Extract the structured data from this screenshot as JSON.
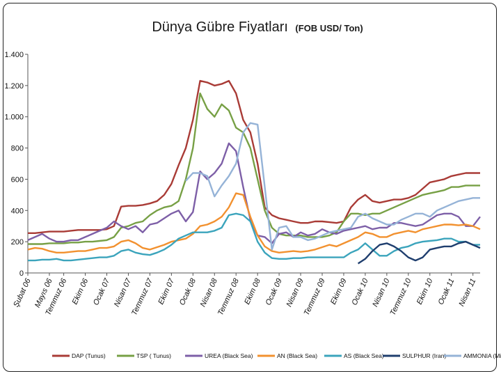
{
  "chart_data": {
    "type": "line",
    "title": "Dünya Gübre Fiyatları",
    "subtitle": "(FOB USD/ Ton)",
    "xlabel": "",
    "ylabel": "",
    "ylim": [
      0,
      1400
    ],
    "yticks": [
      0,
      200,
      400,
      600,
      800,
      "1.000",
      "1.200",
      "1.400"
    ],
    "ytick_labels": [
      "0",
      "200",
      "400",
      "600",
      "800",
      "1.000",
      "1.200",
      "1.400"
    ],
    "grid": false,
    "legend_position": "bottom",
    "x_start": "Şubat 06",
    "n_months": 64,
    "x_tick_labels": [
      "Şubat 06",
      "Mayıs 06",
      "Temmuz 06",
      "Ekim 06",
      "Ocak 07",
      "Nisan 07",
      "Temmuz 07",
      "Ekim 07",
      "Ocak 08",
      "Nisan 08",
      "Temmuz 08",
      "Ekim 08",
      "Ocak 09",
      "Nisan 09",
      "Temmuz 09",
      "Ekim 09",
      "Ocak 10",
      "Nisan 10",
      "Temmuz 10",
      "Ekim 10",
      "Ocak 11",
      "Nisan 11"
    ],
    "x_tick_months": [
      0,
      3,
      5,
      8,
      11,
      14,
      17,
      20,
      23,
      26,
      29,
      32,
      35,
      38,
      41,
      44,
      47,
      50,
      53,
      56,
      59,
      62
    ],
    "series": [
      {
        "name": "DAP (Tunus)",
        "color": "#A93B36",
        "start": 0,
        "values": [
          255,
          255,
          260,
          265,
          265,
          265,
          270,
          275,
          275,
          275,
          275,
          280,
          300,
          425,
          430,
          430,
          435,
          445,
          460,
          500,
          570,
          690,
          800,
          980,
          1230,
          1220,
          1200,
          1210,
          1230,
          1150,
          980,
          900,
          700,
          420,
          370,
          350,
          340,
          330,
          320,
          320,
          330,
          330,
          325,
          320,
          330,
          420,
          470,
          500,
          460,
          450,
          460,
          470,
          470,
          480,
          500,
          540,
          580,
          590,
          600,
          620,
          630,
          640,
          640,
          640
        ]
      },
      {
        "name": "TSP ( Tunus)",
        "color": "#77A045",
        "start": 0,
        "values": [
          185,
          185,
          185,
          190,
          190,
          190,
          195,
          195,
          200,
          200,
          205,
          210,
          230,
          290,
          300,
          320,
          330,
          370,
          400,
          420,
          430,
          460,
          600,
          800,
          1150,
          1050,
          1000,
          1080,
          1040,
          930,
          900,
          800,
          600,
          400,
          290,
          250,
          240,
          240,
          240,
          230,
          230,
          230,
          240,
          260,
          330,
          380,
          380,
          370,
          380,
          380,
          400,
          420,
          440,
          460,
          480,
          500,
          510,
          520,
          530,
          550,
          550,
          560,
          560,
          560
        ]
      },
      {
        "name": "UREA (Black Sea)",
        "color": "#7D5FA7",
        "start": 0,
        "values": [
          210,
          230,
          250,
          220,
          200,
          200,
          210,
          210,
          230,
          250,
          270,
          290,
          330,
          300,
          280,
          300,
          260,
          310,
          320,
          350,
          380,
          400,
          330,
          390,
          650,
          600,
          640,
          700,
          830,
          780,
          550,
          340,
          240,
          230,
          190,
          250,
          260,
          230,
          260,
          240,
          250,
          280,
          260,
          250,
          270,
          280,
          290,
          300,
          280,
          290,
          290,
          320,
          320,
          310,
          300,
          310,
          340,
          370,
          380,
          380,
          360,
          300,
          300,
          360
        ]
      },
      {
        "name": "AN (Black Sea)",
        "color": "#F2912F",
        "start": 0,
        "values": [
          150,
          160,
          155,
          140,
          130,
          130,
          135,
          140,
          140,
          150,
          160,
          160,
          170,
          200,
          210,
          190,
          160,
          150,
          165,
          180,
          200,
          210,
          220,
          250,
          300,
          310,
          330,
          360,
          420,
          510,
          500,
          360,
          240,
          170,
          140,
          130,
          135,
          140,
          135,
          140,
          150,
          165,
          180,
          170,
          190,
          210,
          230,
          260,
          250,
          230,
          230,
          250,
          260,
          270,
          260,
          280,
          290,
          300,
          310,
          310,
          305,
          310,
          300,
          280
        ]
      },
      {
        "name": "AS (Black Sea)",
        "color": "#3BA4BC",
        "start": 0,
        "values": [
          80,
          80,
          85,
          85,
          90,
          80,
          80,
          85,
          90,
          95,
          100,
          100,
          110,
          140,
          150,
          130,
          120,
          115,
          130,
          150,
          180,
          220,
          240,
          260,
          260,
          260,
          270,
          290,
          370,
          380,
          370,
          330,
          200,
          130,
          95,
          90,
          90,
          95,
          95,
          100,
          100,
          100,
          100,
          100,
          100,
          130,
          150,
          190,
          150,
          110,
          110,
          140,
          160,
          170,
          190,
          200,
          205,
          210,
          220,
          220,
          200,
          200,
          180,
          180
        ]
      },
      {
        "name": "SULPHUR (Iran)",
        "color": "#1F3E6E",
        "start": 46,
        "values": [
          60,
          90,
          140,
          180,
          190,
          170,
          140,
          100,
          80,
          100,
          150,
          160,
          170,
          170,
          190,
          200,
          180,
          160
        ]
      },
      {
        "name": "AMMONIA (Middle East)",
        "color": "#95B3D7",
        "start": 22,
        "values": [
          590,
          640,
          640,
          620,
          490,
          560,
          620,
          700,
          900,
          960,
          950,
          550,
          150,
          290,
          300,
          230,
          230,
          210,
          220,
          240,
          260,
          270,
          280,
          290,
          360,
          380,
          350,
          330,
          310,
          310,
          340,
          360,
          380,
          380,
          360,
          400,
          420,
          440,
          460,
          470,
          480,
          480
        ]
      }
    ]
  }
}
